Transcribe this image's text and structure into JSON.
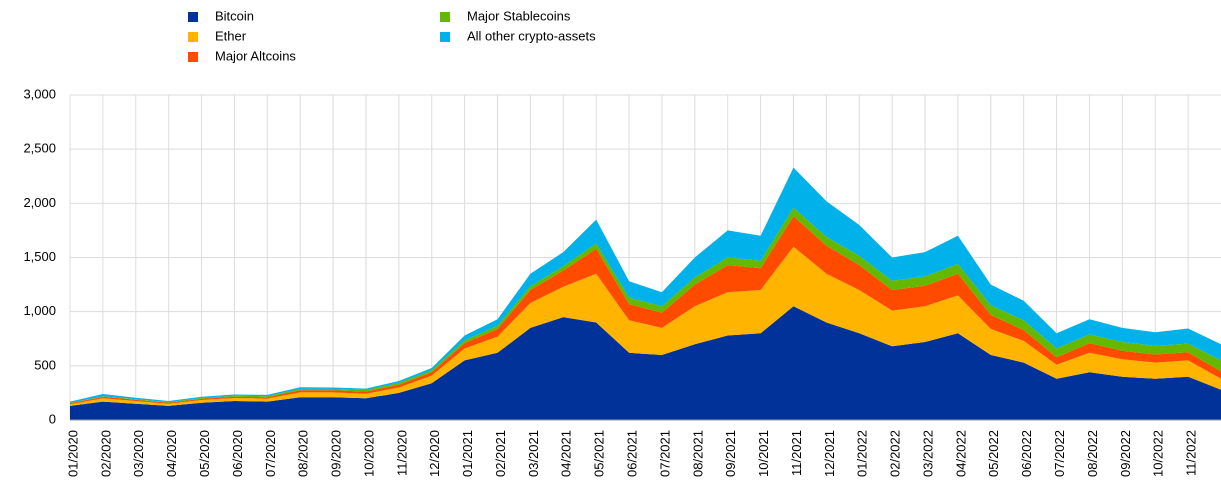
{
  "chart_data": {
    "type": "stacked_area",
    "categories": [
      "01/2020",
      "02/2020",
      "03/2020",
      "04/2020",
      "05/2020",
      "06/2020",
      "07/2020",
      "08/2020",
      "09/2020",
      "10/2020",
      "11/2020",
      "12/2020",
      "01/2021",
      "02/2021",
      "03/2021",
      "04/2021",
      "05/2021",
      "06/2021",
      "07/2021",
      "08/2021",
      "09/2021",
      "10/2021",
      "11/2021",
      "12/2021",
      "01/2022",
      "02/2022",
      "03/2022",
      "04/2022",
      "05/2022",
      "06/2022",
      "07/2022",
      "08/2022",
      "09/2022",
      "10/2022",
      "11/2022",
      null
    ],
    "series": [
      {
        "name": "Bitcoin",
        "color": "#003299",
        "values": [
          130,
          170,
          150,
          130,
          160,
          175,
          170,
          210,
          210,
          200,
          250,
          340,
          550,
          620,
          850,
          950,
          900,
          620,
          600,
          700,
          780,
          800,
          1050,
          900,
          800,
          680,
          720,
          800,
          600,
          530,
          380,
          440,
          400,
          380,
          400,
          280
        ]
      },
      {
        "name": "Ether",
        "color": "#ffb400",
        "values": [
          15,
          30,
          25,
          20,
          25,
          28,
          28,
          45,
          45,
          42,
          50,
          70,
          110,
          150,
          230,
          280,
          450,
          300,
          250,
          350,
          400,
          400,
          550,
          450,
          400,
          330,
          330,
          350,
          240,
          200,
          130,
          180,
          160,
          150,
          150,
          100
        ]
      },
      {
        "name": "Major Altcoins",
        "color": "#ff4b00",
        "values": [
          10,
          15,
          12,
          10,
          12,
          12,
          12,
          20,
          20,
          20,
          25,
          30,
          50,
          70,
          120,
          150,
          230,
          150,
          140,
          200,
          250,
          200,
          280,
          260,
          230,
          190,
          190,
          200,
          130,
          100,
          70,
          90,
          80,
          75,
          75,
          70
        ]
      },
      {
        "name": "Major Stablecoins",
        "color": "#65b800",
        "values": [
          5,
          5,
          5,
          5,
          6,
          8,
          10,
          12,
          12,
          15,
          18,
          20,
          25,
          30,
          35,
          40,
          50,
          60,
          60,
          65,
          70,
          70,
          80,
          80,
          85,
          85,
          85,
          90,
          90,
          90,
          80,
          80,
          80,
          80,
          80,
          100
        ]
      },
      {
        "name": "All other crypto-assets",
        "color": "#00b1ea",
        "values": [
          10,
          20,
          13,
          10,
          12,
          12,
          12,
          15,
          13,
          13,
          17,
          20,
          45,
          60,
          115,
          130,
          220,
          150,
          130,
          185,
          250,
          230,
          370,
          330,
          285,
          215,
          225,
          260,
          190,
          180,
          140,
          140,
          130,
          125,
          140,
          150
        ]
      }
    ],
    "ylim": [
      0,
      3000
    ],
    "yticks": [
      0,
      500,
      {
        "value": 1000,
        "label": "1,000"
      },
      {
        "value": 1500,
        "label": "1,500"
      },
      {
        "value": 2000,
        "label": "2,000"
      },
      {
        "value": 2500,
        "label": "2,500"
      },
      {
        "value": 3000,
        "label": "3,000"
      }
    ],
    "grid": true
  }
}
